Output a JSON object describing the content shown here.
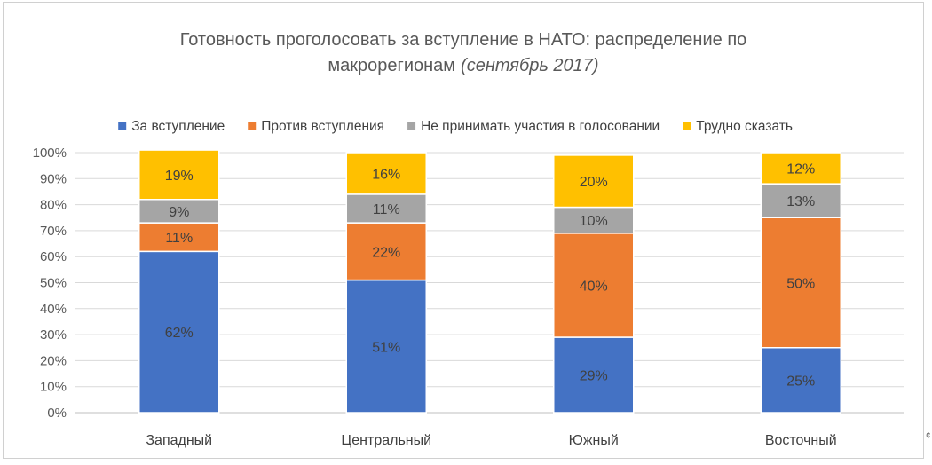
{
  "chart_data": {
    "type": "bar",
    "stacked": true,
    "title": "Готовность проголосовать за вступление в НАТО: распределение по",
    "title_line2": "макрорегионам",
    "title_italic": "(сентябрь 2017)",
    "categories": [
      "Западный",
      "Центральный",
      "Южный",
      "Восточный"
    ],
    "series": [
      {
        "name": "За вступление",
        "color": "#4472C4",
        "label_color": "#404040",
        "values": [
          62,
          51,
          29,
          25
        ]
      },
      {
        "name": "Против вступления",
        "color": "#ED7D31",
        "label_color": "#404040",
        "values": [
          11,
          22,
          40,
          50
        ]
      },
      {
        "name": "Не принимать участия в голосовании",
        "color": "#A5A5A5",
        "label_color": "#404040",
        "values": [
          9,
          11,
          10,
          13
        ]
      },
      {
        "name": "Трудно сказать",
        "color": "#FFC000",
        "label_color": "#404040",
        "values": [
          19,
          16,
          20,
          12
        ]
      }
    ],
    "ylim": [
      0,
      100
    ],
    "yticks": [
      "0%",
      "10%",
      "20%",
      "30%",
      "40%",
      "50%",
      "60%",
      "70%",
      "80%",
      "90%",
      "100%"
    ],
    "grid": true,
    "legend_position": "top",
    "value_suffix": "%"
  },
  "stray_mark": "¢"
}
